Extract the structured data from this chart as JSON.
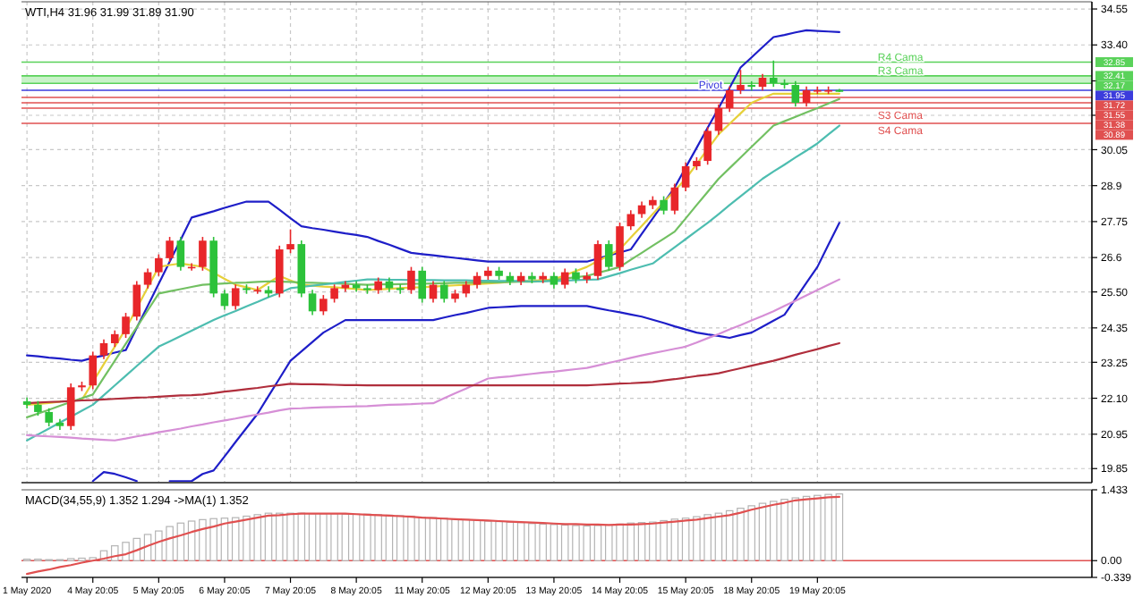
{
  "chart_data": [
    {
      "type": "candlestick",
      "title": "WTI,H4 31.96 31.99 31.89 31.90",
      "ylim": [
        19.4,
        34.78
      ],
      "grid": true,
      "yticks": [
        34.55,
        {
          "value": 33.4,
          "label": "33.40"
        },
        {
          "value": 32.25,
          "label": null
        },
        {
          "value": 31.15,
          "label": null
        },
        30.05,
        28.9,
        27.75,
        26.6,
        {
          "value": 25.5,
          "label": "25.50"
        },
        24.35,
        23.25,
        {
          "value": 22.1,
          "label": "22.10"
        },
        20.95,
        19.85
      ],
      "categories": [
        null,
        null,
        null,
        null,
        null,
        null,
        null,
        null,
        null,
        null,
        null,
        null,
        null,
        null,
        null,
        null,
        null,
        null,
        null,
        null,
        null,
        null,
        null,
        null,
        null,
        null,
        null,
        null,
        null,
        null,
        null,
        null,
        null,
        null,
        null,
        null,
        null,
        null,
        null,
        null,
        null,
        null,
        null,
        null,
        null,
        null,
        null,
        null,
        null,
        null,
        null,
        null,
        null,
        null,
        null,
        null,
        null,
        null,
        null,
        null,
        null,
        null,
        null,
        null,
        null,
        null,
        null,
        null,
        null,
        null,
        null,
        null,
        null,
        null,
        null
      ],
      "ohlc": [
        [
          22.0,
          22.12,
          21.77,
          21.89
        ],
        [
          21.89,
          22.01,
          21.54,
          21.66
        ],
        [
          21.66,
          21.78,
          21.2,
          21.32
        ],
        [
          21.32,
          21.44,
          21.09,
          21.21
        ],
        [
          21.21,
          22.57,
          21.09,
          22.45
        ],
        [
          22.45,
          22.63,
          22.33,
          22.51
        ],
        [
          22.51,
          23.59,
          22.39,
          23.47
        ],
        [
          23.47,
          23.98,
          23.35,
          23.86
        ],
        [
          23.86,
          24.27,
          23.74,
          24.15
        ],
        [
          24.15,
          24.83,
          24.03,
          24.71
        ],
        [
          24.71,
          25.85,
          24.59,
          25.73
        ],
        [
          25.73,
          26.25,
          25.61,
          26.13
        ],
        [
          26.13,
          26.7,
          26.01,
          26.58
        ],
        [
          26.58,
          27.26,
          26.46,
          27.14
        ],
        [
          27.14,
          27.26,
          26.18,
          26.3
        ],
        [
          26.3,
          26.42,
          26.18,
          26.3
        ],
        [
          26.3,
          27.26,
          26.18,
          27.14
        ],
        [
          27.14,
          27.26,
          25.33,
          25.45
        ],
        [
          25.45,
          25.57,
          24.93,
          25.05
        ],
        [
          25.05,
          25.74,
          24.93,
          25.62
        ],
        [
          25.62,
          25.74,
          25.44,
          25.56
        ],
        [
          25.56,
          25.68,
          25.44,
          25.56
        ],
        [
          25.56,
          25.68,
          25.33,
          25.45
        ],
        [
          25.45,
          26.98,
          25.33,
          26.86
        ],
        [
          26.86,
          27.5,
          26.74,
          27.03
        ],
        [
          27.03,
          27.15,
          25.33,
          25.45
        ],
        [
          25.45,
          25.57,
          24.76,
          24.88
        ],
        [
          24.88,
          25.4,
          24.76,
          25.28
        ],
        [
          25.28,
          25.74,
          25.16,
          25.62
        ],
        [
          25.62,
          25.85,
          25.5,
          25.73
        ],
        [
          25.73,
          25.85,
          25.5,
          25.62
        ],
        [
          25.62,
          25.74,
          25.44,
          25.56
        ],
        [
          25.56,
          25.96,
          25.44,
          25.84
        ],
        [
          25.84,
          25.96,
          25.5,
          25.62
        ],
        [
          25.62,
          25.74,
          25.44,
          25.56
        ],
        [
          25.56,
          26.3,
          25.44,
          26.18
        ],
        [
          26.18,
          26.3,
          25.16,
          25.28
        ],
        [
          25.28,
          25.85,
          25.16,
          25.73
        ],
        [
          25.73,
          25.85,
          25.16,
          25.28
        ],
        [
          25.28,
          25.57,
          25.16,
          25.45
        ],
        [
          25.45,
          25.85,
          25.33,
          25.73
        ],
        [
          25.73,
          26.13,
          25.61,
          26.01
        ],
        [
          26.01,
          26.3,
          25.89,
          26.18
        ],
        [
          26.18,
          26.3,
          25.89,
          26.01
        ],
        [
          26.01,
          26.13,
          25.72,
          25.84
        ],
        [
          25.84,
          26.13,
          25.72,
          26.01
        ],
        [
          26.01,
          26.13,
          25.78,
          25.9
        ],
        [
          25.9,
          26.13,
          25.78,
          26.01
        ],
        [
          26.01,
          26.13,
          25.61,
          25.73
        ],
        [
          25.73,
          26.25,
          25.61,
          26.13
        ],
        [
          26.13,
          26.25,
          25.78,
          25.9
        ],
        [
          25.9,
          26.13,
          25.78,
          26.01
        ],
        [
          26.01,
          27.15,
          25.89,
          27.03
        ],
        [
          27.03,
          27.15,
          26.18,
          26.3
        ],
        [
          26.3,
          27.72,
          26.18,
          27.6
        ],
        [
          27.6,
          28.11,
          27.48,
          27.99
        ],
        [
          27.99,
          28.39,
          27.87,
          28.27
        ],
        [
          28.27,
          28.56,
          28.15,
          28.44
        ],
        [
          28.44,
          28.56,
          27.98,
          28.1
        ],
        [
          28.1,
          28.96,
          27.98,
          28.84
        ],
        [
          28.84,
          29.64,
          28.72,
          29.52
        ],
        [
          29.52,
          29.81,
          29.4,
          29.69
        ],
        [
          29.69,
          30.77,
          29.57,
          30.65
        ],
        [
          30.65,
          31.5,
          30.53,
          31.38
        ],
        [
          31.38,
          32.07,
          31.26,
          31.95
        ],
        [
          31.95,
          32.6,
          31.83,
          32.12
        ],
        [
          32.12,
          32.24,
          31.94,
          32.06
        ],
        [
          32.06,
          32.47,
          31.94,
          32.35
        ],
        [
          32.35,
          32.9,
          32.06,
          32.18
        ],
        [
          32.18,
          32.3,
          32.0,
          32.12
        ],
        [
          32.12,
          32.24,
          31.43,
          31.55
        ],
        [
          31.55,
          32.07,
          31.43,
          31.95
        ],
        [
          31.95,
          32.07,
          31.83,
          31.95
        ],
        [
          31.95,
          32.07,
          31.83,
          31.95
        ],
        [
          31.96,
          31.99,
          31.89,
          31.9
        ]
      ],
      "series": [
        {
          "type": "line",
          "color": "#1e1ec8",
          "values": [
            23.47,
            23.44,
            23.4,
            23.37,
            23.33,
            23.3,
            23.39,
            23.47,
            23.56,
            23.64,
            24.35,
            25.05,
            25.76,
            26.47,
            27.17,
            27.88,
            27.98,
            28.08,
            28.19,
            28.29,
            28.39,
            28.39,
            28.39,
            28.13,
            27.86,
            27.6,
            27.54,
            27.49,
            27.43,
            27.37,
            27.32,
            27.26,
            27.13,
            27.01,
            26.88,
            26.75,
            26.71,
            26.67,
            26.63,
            26.59,
            26.55,
            26.51,
            26.47,
            26.47,
            26.47,
            26.47,
            26.47,
            26.47,
            26.47,
            26.47,
            26.47,
            26.47,
            26.57,
            26.67,
            26.76,
            26.86,
            27.36,
            27.85,
            28.35,
            28.84,
            29.48,
            30.11,
            30.75,
            31.38,
            32.03,
            32.68,
            33.0,
            33.33,
            33.65,
            33.72,
            33.8,
            33.87,
            33.85,
            33.83,
            33.81
          ]
        },
        {
          "type": "line",
          "color": "#1e1ec8",
          "values": [
            null,
            null,
            null,
            null,
            null,
            null,
            19.45,
            19.74,
            19.68,
            19.57,
            19.45,
            null,
            null,
            19.45,
            19.45,
            19.45,
            19.68,
            19.79,
            20.24,
            20.7,
            21.15,
            21.6,
            22.17,
            22.73,
            23.3,
            23.6,
            23.9,
            24.2,
            24.4,
            24.6,
            24.6,
            24.6,
            24.6,
            24.6,
            24.6,
            24.6,
            24.6,
            24.6,
            24.68,
            24.76,
            24.83,
            24.91,
            24.99,
            25.01,
            25.03,
            25.05,
            25.05,
            25.05,
            25.05,
            25.05,
            25.05,
            25.05,
            24.98,
            24.91,
            24.85,
            24.78,
            24.71,
            24.61,
            24.51,
            24.4,
            24.3,
            24.2,
            24.14,
            24.09,
            24.03,
            24.12,
            24.2,
            24.39,
            24.58,
            24.77,
            25.28,
            25.79,
            26.3,
            27.01,
            27.71
          ]
        },
        {
          "type": "line",
          "color": "#e6d03a",
          "values": [
            21.89,
            21.92,
            21.95,
            21.99,
            null,
            22.05,
            22.62,
            23.19,
            23.75,
            24.32,
            24.98,
            25.64,
            26.3,
            26.36,
            26.41,
            26.36,
            26.3,
            26.11,
            25.92,
            25.73,
            25.65,
            25.56,
            25.79,
            26.01,
            25.87,
            25.73,
            25.7,
            25.67,
            25.65,
            25.62,
            25.59,
            25.56,
            25.58,
            25.6,
            25.62,
            25.64,
            25.65,
            25.67,
            25.69,
            25.71,
            25.73,
            25.75,
            25.77,
            25.79,
            25.82,
            25.84,
            25.86,
            25.88,
            25.9,
            26.03,
            26.17,
            26.3,
            26.49,
            26.67,
            26.86,
            27.24,
            27.61,
            27.99,
            28.37,
            28.74,
            29.12,
            29.59,
            30.07,
            30.54,
            30.88,
            31.21,
            31.55,
            31.7,
            31.84,
            31.84,
            31.84,
            31.84,
            31.84,
            31.84,
            31.84
          ]
        },
        {
          "type": "line",
          "color": "#72c062",
          "values": [
            21.49,
            21.61,
            21.73,
            21.86,
            21.98,
            22.1,
            22.22,
            22.76,
            23.3,
            23.84,
            24.37,
            24.91,
            25.45,
            25.52,
            25.59,
            25.66,
            25.73,
            25.75,
            25.77,
            25.79,
            25.8,
            25.82,
            25.84,
            25.83,
            25.82,
            25.8,
            25.79,
            25.78,
            25.77,
            25.76,
            25.74,
            25.73,
            25.74,
            25.74,
            25.75,
            25.76,
            25.76,
            25.77,
            25.78,
            25.79,
            25.79,
            25.8,
            25.81,
            25.81,
            25.82,
            25.83,
            25.83,
            25.84,
            25.88,
            25.93,
            25.97,
            26.01,
            26.11,
            26.2,
            26.3,
            26.53,
            26.75,
            26.98,
            27.2,
            27.43,
            27.85,
            28.28,
            28.7,
            29.12,
            29.46,
            29.8,
            30.14,
            30.48,
            30.82,
            30.96,
            31.1,
            31.24,
            31.38,
            31.53,
            31.67
          ]
        },
        {
          "type": "line",
          "color": "#4dbdb0",
          "values": [
            20.75,
            20.94,
            21.13,
            21.32,
            21.51,
            21.7,
            21.89,
            22.2,
            22.51,
            22.82,
            23.13,
            23.44,
            23.75,
            23.92,
            24.09,
            24.26,
            24.43,
            24.6,
            24.75,
            24.89,
            25.04,
            25.18,
            25.33,
            25.47,
            25.62,
            25.66,
            25.7,
            25.74,
            25.78,
            25.82,
            25.86,
            25.9,
            25.9,
            25.89,
            25.89,
            25.88,
            25.88,
            25.88,
            25.87,
            25.87,
            25.87,
            25.86,
            25.86,
            25.85,
            25.85,
            25.85,
            25.84,
            25.84,
            25.85,
            25.86,
            25.88,
            25.89,
            25.9,
            26.0,
            26.1,
            26.21,
            26.31,
            26.41,
            26.67,
            26.93,
            27.19,
            27.45,
            27.71,
            27.99,
            28.28,
            28.56,
            28.84,
            29.12,
            29.35,
            29.57,
            29.8,
            30.02,
            30.25,
            30.54,
            30.82
          ]
        },
        {
          "type": "line",
          "color": "#d68fd6",
          "values": [
            20.92,
            20.9,
            20.88,
            20.86,
            20.84,
            20.81,
            20.79,
            20.77,
            20.75,
            20.81,
            20.88,
            20.94,
            21.01,
            21.07,
            21.13,
            21.2,
            21.26,
            21.33,
            21.39,
            21.45,
            21.52,
            21.58,
            21.64,
            21.71,
            21.77,
            21.78,
            21.8,
            21.81,
            21.82,
            21.83,
            21.84,
            21.85,
            21.87,
            21.89,
            21.9,
            21.91,
            21.93,
            21.94,
            22.1,
            22.26,
            22.41,
            22.57,
            22.73,
            22.77,
            22.8,
            22.84,
            22.88,
            22.92,
            22.95,
            22.99,
            23.03,
            23.07,
            23.15,
            23.23,
            23.31,
            23.39,
            23.47,
            23.54,
            23.61,
            23.68,
            23.75,
            23.88,
            24.02,
            24.15,
            24.3,
            24.44,
            24.59,
            24.73,
            24.88,
            25.05,
            25.22,
            25.39,
            25.56,
            25.73,
            25.9
          ]
        },
        {
          "type": "line",
          "color": "#b02e3c",
          "values": [
            21.94,
            21.96,
            21.98,
            21.99,
            22.01,
            22.03,
            22.04,
            22.06,
            22.08,
            22.1,
            22.12,
            22.13,
            22.15,
            22.17,
            22.19,
            22.2,
            22.22,
            22.26,
            22.31,
            22.35,
            22.39,
            22.43,
            22.48,
            22.52,
            22.56,
            22.55,
            22.55,
            22.54,
            22.53,
            22.52,
            22.52,
            22.51,
            22.51,
            22.51,
            22.51,
            22.51,
            22.51,
            22.51,
            22.51,
            22.51,
            22.51,
            22.51,
            22.51,
            22.51,
            22.51,
            22.51,
            22.51,
            22.51,
            22.51,
            22.51,
            22.51,
            22.51,
            22.53,
            22.55,
            22.57,
            22.58,
            22.6,
            22.62,
            22.67,
            22.71,
            22.76,
            22.81,
            22.85,
            22.9,
            22.98,
            23.06,
            23.14,
            23.22,
            23.3,
            23.39,
            23.49,
            23.58,
            23.67,
            23.77,
            23.86
          ]
        }
      ],
      "bands": [
        {
          "axis": "y",
          "from": 32.17,
          "to": 32.41,
          "color": "#c8f2c8"
        }
      ],
      "ref_lines": [
        {
          "axis": "y",
          "value": 32.85,
          "label": "R4 Cama",
          "color": "#5ad25a"
        },
        {
          "axis": "y",
          "value": 32.41,
          "label": "R3 Cama",
          "color": "#5ad25a"
        },
        {
          "axis": "y",
          "value": 32.17,
          "color": "#5ad25a"
        },
        {
          "axis": "y",
          "value": 31.95,
          "label": "Pivot",
          "color": "#3c3cdc"
        },
        {
          "axis": "y",
          "value": 31.72,
          "color": "#e05050"
        },
        {
          "axis": "y",
          "value": 31.55,
          "color": "#e05050"
        },
        {
          "axis": "y",
          "value": 31.38,
          "label": "S3 Cama",
          "color": "#e05050"
        },
        {
          "axis": "y",
          "value": 30.89,
          "label": "S4 Cama",
          "color": "#e05050"
        }
      ],
      "annotations": [
        "32.85",
        "32.41",
        "32.17",
        "31.95",
        "31.72",
        "31.55",
        "31.38",
        "30.89"
      ]
    },
    {
      "type": "bar",
      "title": "MACD(34,55,9) 1.352 1.294 ->MA(1) 1.352",
      "ylim": [
        -0.339,
        1.433
      ],
      "color": "#b4b4b4",
      "yticks": [
        1.433,
        {
          "value": 0,
          "label": "0.00"
        },
        -0.339
      ],
      "categories": [
        "1 May 2020",
        null,
        null,
        null,
        null,
        null,
        "4 May 20:05",
        null,
        null,
        null,
        null,
        null,
        "5 May 20:05",
        null,
        null,
        null,
        null,
        null,
        "6 May 20:05",
        null,
        null,
        null,
        null,
        null,
        "7 May 20:05",
        null,
        null,
        null,
        null,
        null,
        "8 May 20:05",
        null,
        null,
        null,
        null,
        null,
        "11 May 20:05",
        null,
        null,
        null,
        null,
        null,
        "12 May 20:05",
        null,
        null,
        null,
        null,
        null,
        "13 May 20:05",
        null,
        null,
        null,
        null,
        null,
        "14 May 20:05",
        null,
        null,
        null,
        null,
        null,
        "15 May 20:05",
        null,
        null,
        null,
        null,
        null,
        "18 May 20:05",
        null,
        null,
        null,
        null,
        null,
        "19 May 20:05",
        null,
        null
      ],
      "values": [
        0.03,
        0.03,
        0.02,
        0.02,
        0.04,
        0.05,
        0.06,
        0.2,
        0.3,
        0.37,
        0.45,
        0.53,
        0.6,
        0.69,
        0.76,
        0.8,
        0.83,
        0.85,
        0.86,
        0.87,
        0.9,
        0.93,
        0.96,
        0.96,
        0.96,
        0.96,
        0.95,
        0.95,
        0.95,
        0.94,
        0.94,
        0.94,
        0.93,
        0.92,
        0.91,
        0.9,
        0.88,
        0.87,
        0.86,
        0.84,
        0.83,
        0.82,
        0.8,
        0.79,
        0.78,
        0.77,
        0.75,
        0.74,
        0.73,
        0.72,
        0.71,
        0.7,
        0.71,
        0.72,
        0.74,
        0.76,
        0.77,
        0.78,
        0.81,
        0.84,
        0.86,
        0.89,
        0.93,
        0.96,
        1.01,
        1.06,
        1.11,
        1.16,
        1.2,
        1.24,
        1.27,
        1.3,
        1.32,
        1.34,
        1.35
      ],
      "series": [
        {
          "type": "line",
          "color": "#e05050",
          "values": [
            -0.27,
            -0.22,
            -0.18,
            -0.13,
            -0.09,
            -0.04,
            0.0,
            0.04,
            0.09,
            0.13,
            0.21,
            0.3,
            0.38,
            0.45,
            0.51,
            0.58,
            0.64,
            0.69,
            0.75,
            0.79,
            0.83,
            0.87,
            0.91,
            0.92,
            0.94,
            0.95,
            0.95,
            0.95,
            0.95,
            0.95,
            0.94,
            0.93,
            0.92,
            0.91,
            0.9,
            0.89,
            0.87,
            0.86,
            0.85,
            0.84,
            0.83,
            0.82,
            0.81,
            0.8,
            0.79,
            0.78,
            0.77,
            0.76,
            0.75,
            0.74,
            0.74,
            0.73,
            0.73,
            0.72,
            0.73,
            0.73,
            0.74,
            0.75,
            0.77,
            0.79,
            0.81,
            0.83,
            0.86,
            0.89,
            0.92,
            0.97,
            1.03,
            1.08,
            1.13,
            1.17,
            1.22,
            1.24,
            1.26,
            1.28,
            1.29
          ]
        }
      ],
      "ref_lines": [
        {
          "axis": "y",
          "value": 0,
          "color": "#e05050"
        }
      ]
    }
  ]
}
